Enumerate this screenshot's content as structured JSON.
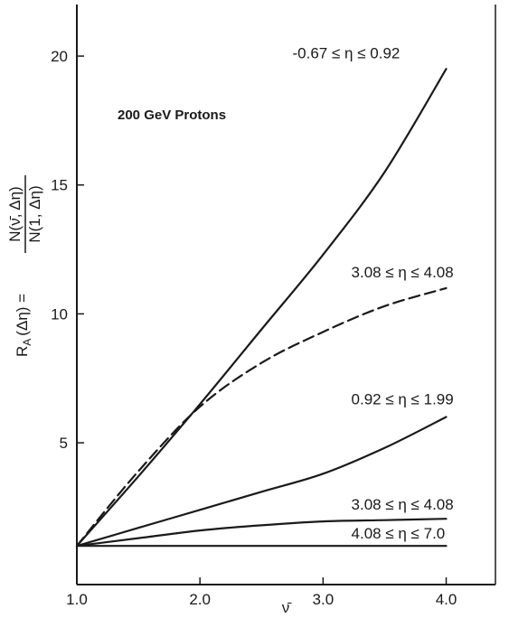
{
  "chart_data": {
    "type": "line",
    "title": "200 GeV Protons",
    "xlabel": "ν̄",
    "ylabel": "R_A(Δη) = N(ν̄,Δη) / N(1,Δη)",
    "ylabel_parts": {
      "lhs": "R",
      "sub": "A",
      "arg": "(Δη) =",
      "num": "N(ν̄, Δη)",
      "den": "N(1, Δη)"
    },
    "xlim": [
      1.0,
      4.4
    ],
    "ylim": [
      -0.5,
      22
    ],
    "grid": false,
    "xticks": [
      {
        "value": 1.0,
        "label": "1.0"
      },
      {
        "value": 2.0,
        "label": "2.0"
      },
      {
        "value": 3.0,
        "label": "3.0"
      },
      {
        "value": 4.0,
        "label": "4.0"
      }
    ],
    "yticks": [
      {
        "value": 5,
        "label": "5"
      },
      {
        "value": 10,
        "label": "10"
      },
      {
        "value": 15,
        "label": "15"
      },
      {
        "value": 20,
        "label": "20"
      }
    ],
    "series": [
      {
        "name": "-0.67 ≤ η ≤ 0.92",
        "style": "solid",
        "x": [
          1.0,
          1.5,
          2.0,
          2.5,
          3.0,
          3.5,
          4.0
        ],
        "y": [
          1.0,
          3.7,
          6.5,
          9.4,
          12.3,
          15.5,
          19.5
        ]
      },
      {
        "name": "3.08 ≤ η ≤ 4.08",
        "style": "dashed",
        "x": [
          1.0,
          1.5,
          2.0,
          2.5,
          3.0,
          3.5,
          4.0
        ],
        "y": [
          1.0,
          3.9,
          6.4,
          8.1,
          9.3,
          10.3,
          11.0
        ]
      },
      {
        "name": "0.92 ≤ η ≤ 1.99",
        "style": "solid",
        "x": [
          1.0,
          1.5,
          2.0,
          2.5,
          3.0,
          3.5,
          4.0
        ],
        "y": [
          1.0,
          1.7,
          2.4,
          3.1,
          3.8,
          4.8,
          6.0
        ]
      },
      {
        "name": "3.08 ≤ η ≤ 4.08",
        "style": "solid",
        "x": [
          1.0,
          1.5,
          2.0,
          2.5,
          3.0,
          3.5,
          4.0
        ],
        "y": [
          1.0,
          1.3,
          1.6,
          1.8,
          1.95,
          2.0,
          2.05
        ]
      },
      {
        "name": "4.08 ≤ η ≤ 7.0",
        "style": "solid",
        "x": [
          1.0,
          1.5,
          2.0,
          2.5,
          3.0,
          3.5,
          4.0
        ],
        "y": [
          1.0,
          1.0,
          1.0,
          1.0,
          1.0,
          1.0,
          1.0
        ]
      }
    ]
  }
}
